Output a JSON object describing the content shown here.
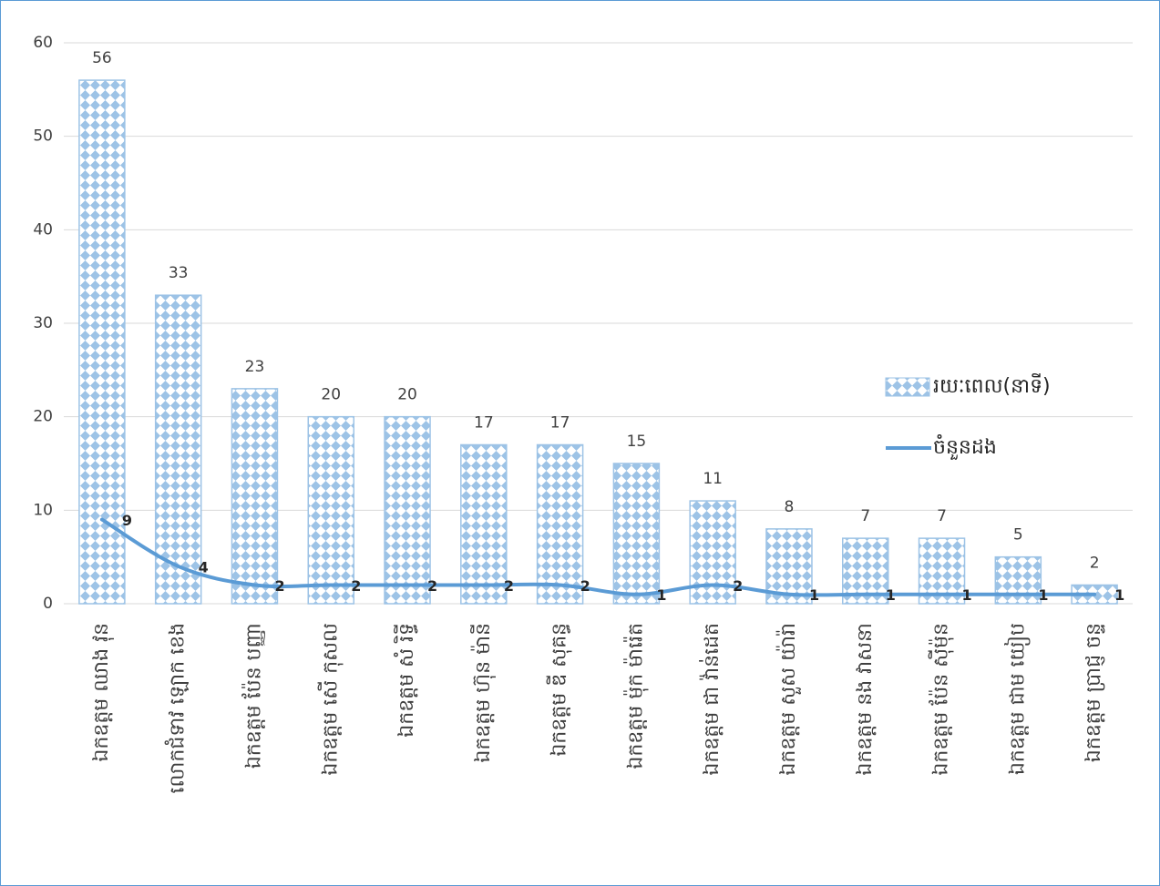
{
  "chart_data": {
    "type": "bar",
    "categories": [
      "ឯកឧត្តម ឈាង វុន",
      "លោកជំទាវ ឡោក ខេង",
      "ឯកឧត្តម ប៉ែន បញ្ញា",
      "ឯកឧត្តម សើ កុសល",
      "ឯកឧត្តម សំ រិទ្ធី",
      "ឯកឧត្តម ហ៊ុន ម៉ានី",
      "ឯកឧត្តម ឌី សុគន្ធ",
      "ឯកឧត្តម ម៉ុក ម៉ារ៉េត",
      "ឯកឧត្តម ជា វ៉ាន់ដេត",
      "ឯកឧត្តម សួស យ៉ារ៉ា",
      "ឯកឧត្តម នង វាសនា",
      "ឯកឧត្តម ប៉ែន ស៊ីម៉ុន",
      "ឯកឧត្តម ជាម យៀប",
      "ឯកឧត្តម ប្រាជ្ញ ចន្ទ"
    ],
    "series": [
      {
        "name": "រយៈពេល(នាទី)",
        "type": "bar",
        "color": "#9dc3e6",
        "values": [
          56,
          33,
          23,
          20,
          20,
          17,
          17,
          15,
          11,
          8,
          7,
          7,
          5,
          2
        ]
      },
      {
        "name": "ចំនួនដង",
        "type": "line",
        "color": "#5b9bd5",
        "values": [
          9,
          4,
          2,
          2,
          2,
          2,
          2,
          1,
          2,
          1,
          1,
          1,
          1,
          1
        ]
      }
    ],
    "ylim": [
      0,
      60
    ],
    "yticks": [
      0,
      10,
      20,
      30,
      40,
      50,
      60
    ],
    "grid": true,
    "legend": "right"
  }
}
